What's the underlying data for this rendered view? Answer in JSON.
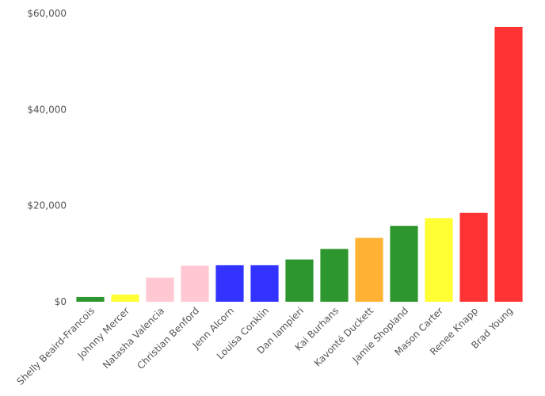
{
  "chart_data": {
    "type": "bar",
    "categories": [
      "Shelly Beaird-Francois",
      "Johnny Mercer",
      "Natasha Valencia",
      "Christian Benford",
      "Jenn Alcorn",
      "Louisa Conklin",
      "Dan Iampieri",
      "Kai Burhans",
      "Kavonté Duckett",
      "Jamie Shopland",
      "Mason Carter",
      "Renee Knapp",
      "Brad Young"
    ],
    "values": [
      1000,
      1500,
      5000,
      7500,
      7600,
      7600,
      8800,
      11000,
      13300,
      15800,
      17400,
      18500,
      57200
    ],
    "colors": [
      "#2e962e",
      "#ffff33",
      "#ffc8d2",
      "#ffc8d2",
      "#3333ff",
      "#3333ff",
      "#2e962e",
      "#2e962e",
      "#ffb233",
      "#2e962e",
      "#ffff33",
      "#ff3333",
      "#ff3333"
    ],
    "title": "",
    "xlabel": "",
    "ylabel": "",
    "ylim": [
      0,
      60000
    ],
    "yticks": [
      0,
      20000,
      40000,
      60000
    ],
    "ytick_labels": [
      "$0",
      "$20,000",
      "$40,000",
      "$60,000"
    ],
    "grid": false,
    "legend": "none"
  }
}
